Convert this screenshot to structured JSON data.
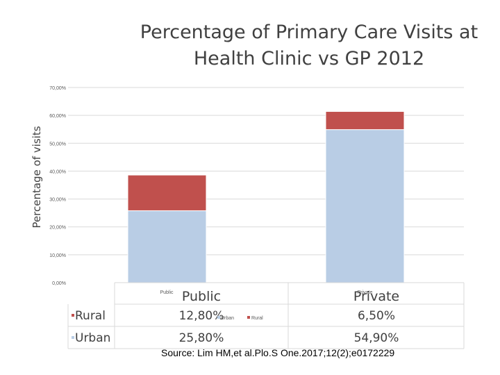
{
  "chart_data": {
    "type": "bar",
    "stacked": true,
    "title": "Percentage of Primary Care Visits at Health Clinic vs GP 2012",
    "ylabel": "Percentage of visits",
    "xlabel": "",
    "categories": [
      "Public",
      "Private"
    ],
    "series": [
      {
        "name": "Urban",
        "values": [
          25.8,
          54.9
        ],
        "color": "#b9cde5"
      },
      {
        "name": "Rural",
        "values": [
          12.8,
          6.5
        ],
        "color": "#c0504d"
      }
    ],
    "ylim": [
      0,
      70
    ],
    "yticks": [
      "0,00%",
      "10,00%",
      "20,00%",
      "30,00%",
      "40,00%",
      "50,00%",
      "60,00%",
      "70,00%"
    ],
    "grid": true,
    "data_table": {
      "header": [
        "Public",
        "Private"
      ],
      "rows": [
        {
          "name": "Rural",
          "cells": [
            "12,80%",
            "6,50%"
          ],
          "color": "#c0504d"
        },
        {
          "name": "Urban",
          "cells": [
            "25,80%",
            "54,90%"
          ],
          "color": "#b9cde5"
        }
      ]
    },
    "small_category_labels": [
      "Public",
      "Private"
    ],
    "inline_legend": [
      "Urban",
      "Rural"
    ]
  },
  "source_note": "Source: Lim HM,et al.Plo.S One.2017;12(2);e0172229"
}
